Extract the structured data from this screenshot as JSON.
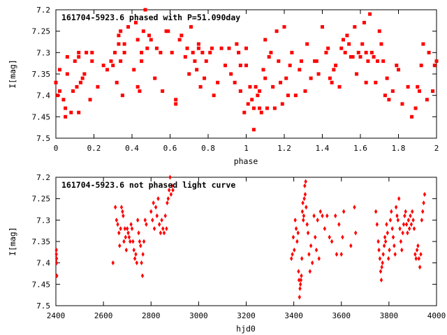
{
  "chart_data": [
    {
      "type": "scatter",
      "title": "161704-5923.6 phased with P=51.090day",
      "xlabel": "phase",
      "ylabel": "I[mag]",
      "xlim": [
        0,
        2
      ],
      "ylim": [
        7.5,
        7.2
      ],
      "y_inverted": true,
      "grid": false,
      "marker": "filled-square",
      "color": "#ff0000",
      "xticks": [
        "0",
        "0.2",
        "0.4",
        "0.6",
        "0.8",
        "1",
        "1.2",
        "1.4",
        "1.6",
        "1.8",
        "2"
      ],
      "yticks": [
        "7.2",
        "7.25",
        "7.3",
        "7.35",
        "7.4",
        "7.45",
        "7.5"
      ],
      "points": [
        [
          0.0,
          7.37
        ],
        [
          0.01,
          7.4
        ],
        [
          0.02,
          7.39
        ],
        [
          0.02,
          7.34
        ],
        [
          0.04,
          7.41
        ],
        [
          0.05,
          7.45
        ],
        [
          0.05,
          7.43
        ],
        [
          0.06,
          7.31
        ],
        [
          0.06,
          7.35
        ],
        [
          0.08,
          7.44
        ],
        [
          0.09,
          7.39
        ],
        [
          0.1,
          7.32
        ],
        [
          0.11,
          7.38
        ],
        [
          0.12,
          7.3
        ],
        [
          0.12,
          7.31
        ],
        [
          0.12,
          7.44
        ],
        [
          0.13,
          7.37
        ],
        [
          0.14,
          7.36
        ],
        [
          0.15,
          7.35
        ],
        [
          0.16,
          7.3
        ],
        [
          0.18,
          7.41
        ],
        [
          0.19,
          7.3
        ],
        [
          0.19,
          7.32
        ],
        [
          0.22,
          7.38
        ],
        [
          0.25,
          7.33
        ],
        [
          0.27,
          7.34
        ],
        [
          0.29,
          7.32
        ],
        [
          0.3,
          7.33
        ],
        [
          0.31,
          7.3
        ],
        [
          0.32,
          7.37
        ],
        [
          0.33,
          7.28
        ],
        [
          0.33,
          7.26
        ],
        [
          0.34,
          7.25
        ],
        [
          0.34,
          7.32
        ],
        [
          0.35,
          7.4
        ],
        [
          0.36,
          7.3
        ],
        [
          0.36,
          7.28
        ],
        [
          0.38,
          7.24
        ],
        [
          0.41,
          7.34
        ],
        [
          0.42,
          7.23
        ],
        [
          0.43,
          7.38
        ],
        [
          0.43,
          7.27
        ],
        [
          0.44,
          7.39
        ],
        [
          0.45,
          7.3
        ],
        [
          0.45,
          7.32
        ],
        [
          0.46,
          7.25
        ],
        [
          0.47,
          7.2
        ],
        [
          0.48,
          7.29
        ],
        [
          0.49,
          7.26
        ],
        [
          0.5,
          7.27
        ],
        [
          0.52,
          7.36
        ],
        [
          0.53,
          7.29
        ],
        [
          0.55,
          7.3
        ],
        [
          0.56,
          7.39
        ],
        [
          0.58,
          7.25
        ],
        [
          0.59,
          7.25
        ],
        [
          0.61,
          7.3
        ],
        [
          0.63,
          7.41
        ],
        [
          0.63,
          7.42
        ],
        [
          0.65,
          7.27
        ],
        [
          0.66,
          7.26
        ],
        [
          0.68,
          7.31
        ],
        [
          0.69,
          7.29
        ],
        [
          0.7,
          7.35
        ],
        [
          0.71,
          7.24
        ],
        [
          0.72,
          7.3
        ],
        [
          0.73,
          7.32
        ],
        [
          0.74,
          7.34
        ],
        [
          0.75,
          7.29
        ],
        [
          0.75,
          7.28
        ],
        [
          0.76,
          7.38
        ],
        [
          0.77,
          7.3
        ],
        [
          0.78,
          7.36
        ],
        [
          0.79,
          7.32
        ],
        [
          0.81,
          7.3
        ],
        [
          0.82,
          7.29
        ],
        [
          0.83,
          7.4
        ],
        [
          0.85,
          7.37
        ],
        [
          0.87,
          7.29
        ],
        [
          0.89,
          7.33
        ],
        [
          0.91,
          7.29
        ],
        [
          0.92,
          7.35
        ],
        [
          0.94,
          7.37
        ],
        [
          0.95,
          7.28
        ],
        [
          0.96,
          7.3
        ],
        [
          0.97,
          7.33
        ],
        [
          0.97,
          7.39
        ],
        [
          0.99,
          7.44
        ],
        [
          1.0,
          7.29
        ],
        [
          1.0,
          7.33
        ],
        [
          1.01,
          7.42
        ],
        [
          1.02,
          7.38
        ],
        [
          1.03,
          7.41
        ],
        [
          1.04,
          7.43
        ],
        [
          1.04,
          7.48
        ],
        [
          1.05,
          7.38
        ],
        [
          1.06,
          7.4
        ],
        [
          1.07,
          7.39
        ],
        [
          1.07,
          7.43
        ],
        [
          1.08,
          7.44
        ],
        [
          1.09,
          7.34
        ],
        [
          1.1,
          7.36
        ],
        [
          1.1,
          7.27
        ],
        [
          1.11,
          7.43
        ],
        [
          1.12,
          7.31
        ],
        [
          1.13,
          7.3
        ],
        [
          1.14,
          7.38
        ],
        [
          1.15,
          7.43
        ],
        [
          1.16,
          7.25
        ],
        [
          1.17,
          7.32
        ],
        [
          1.18,
          7.37
        ],
        [
          1.19,
          7.42
        ],
        [
          1.2,
          7.24
        ],
        [
          1.21,
          7.36
        ],
        [
          1.22,
          7.4
        ],
        [
          1.23,
          7.33
        ],
        [
          1.24,
          7.3
        ],
        [
          1.26,
          7.4
        ],
        [
          1.28,
          7.34
        ],
        [
          1.29,
          7.32
        ],
        [
          1.31,
          7.39
        ],
        [
          1.32,
          7.28
        ],
        [
          1.34,
          7.36
        ],
        [
          1.36,
          7.32
        ],
        [
          1.37,
          7.32
        ],
        [
          1.38,
          7.35
        ],
        [
          1.4,
          7.24
        ],
        [
          1.42,
          7.3
        ],
        [
          1.43,
          7.29
        ],
        [
          1.44,
          7.36
        ],
        [
          1.45,
          7.37
        ],
        [
          1.46,
          7.34
        ],
        [
          1.47,
          7.33
        ],
        [
          1.49,
          7.38
        ],
        [
          1.5,
          7.29
        ],
        [
          1.51,
          7.27
        ],
        [
          1.52,
          7.3
        ],
        [
          1.53,
          7.26
        ],
        [
          1.54,
          7.28
        ],
        [
          1.55,
          7.31
        ],
        [
          1.56,
          7.31
        ],
        [
          1.57,
          7.24
        ],
        [
          1.58,
          7.35
        ],
        [
          1.59,
          7.3
        ],
        [
          1.6,
          7.31
        ],
        [
          1.61,
          7.28
        ],
        [
          1.62,
          7.23
        ],
        [
          1.63,
          7.3
        ],
        [
          1.63,
          7.37
        ],
        [
          1.64,
          7.32
        ],
        [
          1.65,
          7.21
        ],
        [
          1.66,
          7.3
        ],
        [
          1.67,
          7.31
        ],
        [
          1.68,
          7.37
        ],
        [
          1.69,
          7.32
        ],
        [
          1.7,
          7.25
        ],
        [
          1.71,
          7.28
        ],
        [
          1.72,
          7.32
        ],
        [
          1.73,
          7.4
        ],
        [
          1.74,
          7.36
        ],
        [
          1.75,
          7.41
        ],
        [
          1.77,
          7.39
        ],
        [
          1.79,
          7.33
        ],
        [
          1.8,
          7.34
        ],
        [
          1.82,
          7.42
        ],
        [
          1.85,
          7.38
        ],
        [
          1.87,
          7.45
        ],
        [
          1.89,
          7.43
        ],
        [
          1.9,
          7.38
        ],
        [
          1.91,
          7.39
        ],
        [
          1.92,
          7.33
        ],
        [
          1.93,
          7.28
        ],
        [
          1.95,
          7.41
        ],
        [
          1.96,
          7.3
        ],
        [
          1.98,
          7.39
        ],
        [
          1.99,
          7.33
        ],
        [
          2.0,
          7.32
        ]
      ]
    },
    {
      "type": "scatter",
      "title": "161704-5923.6 not phased light curve",
      "xlabel": "hjd0",
      "ylabel": "I[mag]",
      "xlim": [
        2400,
        4000
      ],
      "ylim": [
        7.5,
        7.2
      ],
      "y_inverted": true,
      "grid": false,
      "marker": "filled-diamond",
      "color": "#ff0000",
      "xticks": [
        "2400",
        "2600",
        "2800",
        "3000",
        "3200",
        "3400",
        "3600",
        "3800",
        "4000"
      ],
      "yticks": [
        "7.2",
        "7.25",
        "7.3",
        "7.35",
        "7.4",
        "7.45",
        "7.5"
      ],
      "points": [
        [
          2402,
          7.37
        ],
        [
          2402,
          7.38
        ],
        [
          2403,
          7.39
        ],
        [
          2403,
          7.4
        ],
        [
          2404,
          7.43
        ],
        [
          2640,
          7.4
        ],
        [
          2650,
          7.27
        ],
        [
          2655,
          7.3
        ],
        [
          2660,
          7.31
        ],
        [
          2665,
          7.33
        ],
        [
          2668,
          7.36
        ],
        [
          2672,
          7.32
        ],
        [
          2676,
          7.27
        ],
        [
          2680,
          7.28
        ],
        [
          2683,
          7.29
        ],
        [
          2686,
          7.35
        ],
        [
          2690,
          7.32
        ],
        [
          2693,
          7.34
        ],
        [
          2696,
          7.37
        ],
        [
          2700,
          7.32
        ],
        [
          2704,
          7.33
        ],
        [
          2708,
          7.34
        ],
        [
          2712,
          7.35
        ],
        [
          2716,
          7.31
        ],
        [
          2720,
          7.32
        ],
        [
          2724,
          7.35
        ],
        [
          2728,
          7.37
        ],
        [
          2732,
          7.39
        ],
        [
          2736,
          7.38
        ],
        [
          2740,
          7.4
        ],
        [
          2744,
          7.3
        ],
        [
          2748,
          7.33
        ],
        [
          2752,
          7.35
        ],
        [
          2756,
          7.36
        ],
        [
          2760,
          7.4
        ],
        [
          2764,
          7.43
        ],
        [
          2766,
          7.38
        ],
        [
          2770,
          7.35
        ],
        [
          2775,
          7.3
        ],
        [
          2780,
          7.31
        ],
        [
          2800,
          7.28
        ],
        [
          2806,
          7.3
        ],
        [
          2810,
          7.26
        ],
        [
          2814,
          7.32
        ],
        [
          2820,
          7.27
        ],
        [
          2825,
          7.29
        ],
        [
          2830,
          7.25
        ],
        [
          2835,
          7.31
        ],
        [
          2840,
          7.33
        ],
        [
          2845,
          7.3
        ],
        [
          2850,
          7.32
        ],
        [
          2855,
          7.33
        ],
        [
          2860,
          7.29
        ],
        [
          2865,
          7.32
        ],
        [
          2868,
          7.26
        ],
        [
          2872,
          7.25
        ],
        [
          2876,
          7.23
        ],
        [
          2880,
          7.2
        ],
        [
          2884,
          7.24
        ],
        [
          2888,
          7.22
        ],
        [
          2892,
          7.23
        ],
        [
          3390,
          7.39
        ],
        [
          3394,
          7.38
        ],
        [
          3398,
          7.34
        ],
        [
          3402,
          7.37
        ],
        [
          3406,
          7.3
        ],
        [
          3410,
          7.32
        ],
        [
          3414,
          7.35
        ],
        [
          3418,
          7.33
        ],
        [
          3420,
          7.42
        ],
        [
          3422,
          7.44
        ],
        [
          3424,
          7.48
        ],
        [
          3426,
          7.46
        ],
        [
          3428,
          7.45
        ],
        [
          3430,
          7.44
        ],
        [
          3432,
          7.43
        ],
        [
          3434,
          7.39
        ],
        [
          3436,
          7.28
        ],
        [
          3438,
          7.26
        ],
        [
          3440,
          7.3
        ],
        [
          3442,
          7.29
        ],
        [
          3444,
          7.25
        ],
        [
          3446,
          7.22
        ],
        [
          3448,
          7.24
        ],
        [
          3450,
          7.21
        ],
        [
          3452,
          7.27
        ],
        [
          3456,
          7.31
        ],
        [
          3460,
          7.33
        ],
        [
          3464,
          7.38
        ],
        [
          3468,
          7.42
        ],
        [
          3472,
          7.36
        ],
        [
          3478,
          7.4
        ],
        [
          3485,
          7.29
        ],
        [
          3490,
          7.34
        ],
        [
          3495,
          7.37
        ],
        [
          3500,
          7.3
        ],
        [
          3506,
          7.39
        ],
        [
          3512,
          7.28
        ],
        [
          3520,
          7.29
        ],
        [
          3530,
          7.32
        ],
        [
          3540,
          7.29
        ],
        [
          3550,
          7.34
        ],
        [
          3560,
          7.35
        ],
        [
          3575,
          7.29
        ],
        [
          3580,
          7.38
        ],
        [
          3590,
          7.31
        ],
        [
          3600,
          7.38
        ],
        [
          3605,
          7.34
        ],
        [
          3610,
          7.28
        ],
        [
          3640,
          7.36
        ],
        [
          3655,
          7.27
        ],
        [
          3660,
          7.33
        ],
        [
          3745,
          7.28
        ],
        [
          3750,
          7.31
        ],
        [
          3755,
          7.35
        ],
        [
          3758,
          7.37
        ],
        [
          3762,
          7.39
        ],
        [
          3765,
          7.42
        ],
        [
          3768,
          7.44
        ],
        [
          3770,
          7.41
        ],
        [
          3773,
          7.4
        ],
        [
          3776,
          7.38
        ],
        [
          3780,
          7.36
        ],
        [
          3783,
          7.34
        ],
        [
          3786,
          7.35
        ],
        [
          3790,
          7.31
        ],
        [
          3794,
          7.33
        ],
        [
          3798,
          7.39
        ],
        [
          3802,
          7.37
        ],
        [
          3806,
          7.3
        ],
        [
          3810,
          7.28
        ],
        [
          3814,
          7.32
        ],
        [
          3818,
          7.34
        ],
        [
          3822,
          7.36
        ],
        [
          3826,
          7.38
        ],
        [
          3830,
          7.27
        ],
        [
          3834,
          7.29
        ],
        [
          3838,
          7.3
        ],
        [
          3842,
          7.25
        ],
        [
          3846,
          7.32
        ],
        [
          3850,
          7.35
        ],
        [
          3854,
          7.37
        ],
        [
          3858,
          7.33
        ],
        [
          3862,
          7.31
        ],
        [
          3866,
          7.29
        ],
        [
          3870,
          7.28
        ],
        [
          3874,
          7.31
        ],
        [
          3878,
          7.33
        ],
        [
          3882,
          7.3
        ],
        [
          3886,
          7.32
        ],
        [
          3890,
          7.29
        ],
        [
          3894,
          7.31
        ],
        [
          3898,
          7.28
        ],
        [
          3902,
          7.3
        ],
        [
          3906,
          7.32
        ],
        [
          3910,
          7.38
        ],
        [
          3914,
          7.39
        ],
        [
          3918,
          7.37
        ],
        [
          3922,
          7.36
        ],
        [
          3926,
          7.39
        ],
        [
          3930,
          7.41
        ],
        [
          3934,
          7.38
        ],
        [
          3938,
          7.3
        ],
        [
          3942,
          7.28
        ],
        [
          3946,
          7.26
        ],
        [
          3950,
          7.24
        ]
      ]
    }
  ]
}
